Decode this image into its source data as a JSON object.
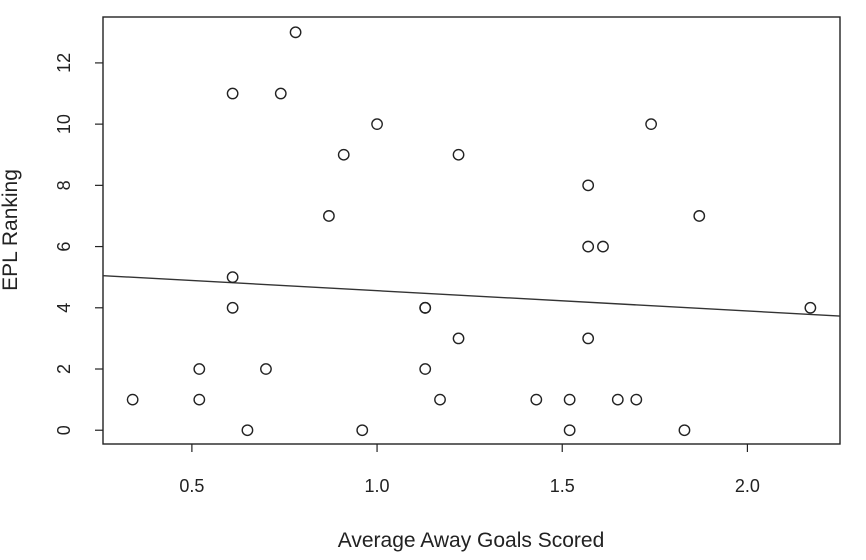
{
  "chart_data": {
    "type": "scatter",
    "title": "",
    "xlabel": "Average Away Goals Scored",
    "ylabel": "EPL Ranking",
    "xlim": [
      0.26,
      2.25
    ],
    "ylim": [
      -0.45,
      13.5
    ],
    "xticks": [
      0.5,
      1.0,
      1.5,
      2.0
    ],
    "xtick_labels": [
      "0.5",
      "1.0",
      "1.5",
      "2.0"
    ],
    "yticks": [
      0,
      2,
      4,
      6,
      8,
      10,
      12
    ],
    "ytick_labels": [
      "0",
      "2",
      "4",
      "6",
      "8",
      "10",
      "12"
    ],
    "grid": false,
    "points": [
      {
        "x": 0.34,
        "y": 1
      },
      {
        "x": 0.52,
        "y": 2
      },
      {
        "x": 0.52,
        "y": 1
      },
      {
        "x": 0.61,
        "y": 11
      },
      {
        "x": 0.61,
        "y": 5
      },
      {
        "x": 0.61,
        "y": 4
      },
      {
        "x": 0.65,
        "y": 0
      },
      {
        "x": 0.7,
        "y": 2
      },
      {
        "x": 0.74,
        "y": 11
      },
      {
        "x": 0.78,
        "y": 13
      },
      {
        "x": 0.87,
        "y": 7
      },
      {
        "x": 0.91,
        "y": 9
      },
      {
        "x": 0.96,
        "y": 0
      },
      {
        "x": 1.0,
        "y": 10
      },
      {
        "x": 1.13,
        "y": 4
      },
      {
        "x": 1.13,
        "y": 4
      },
      {
        "x": 1.13,
        "y": 2
      },
      {
        "x": 1.17,
        "y": 1
      },
      {
        "x": 1.22,
        "y": 9
      },
      {
        "x": 1.22,
        "y": 3
      },
      {
        "x": 1.43,
        "y": 1
      },
      {
        "x": 1.52,
        "y": 1
      },
      {
        "x": 1.52,
        "y": 0
      },
      {
        "x": 1.57,
        "y": 8
      },
      {
        "x": 1.57,
        "y": 6
      },
      {
        "x": 1.57,
        "y": 3
      },
      {
        "x": 1.61,
        "y": 6
      },
      {
        "x": 1.65,
        "y": 1
      },
      {
        "x": 1.7,
        "y": 1
      },
      {
        "x": 1.74,
        "y": 10
      },
      {
        "x": 1.83,
        "y": 0
      },
      {
        "x": 1.87,
        "y": 7
      },
      {
        "x": 2.17,
        "y": 4
      }
    ],
    "regression_line": {
      "x": [
        0.26,
        2.25
      ],
      "y": [
        5.05,
        3.73
      ]
    },
    "marker": "open-circle",
    "colors": {
      "points": "#222222",
      "line": "#333333",
      "axis": "#222222",
      "background": "#ffffff"
    }
  }
}
